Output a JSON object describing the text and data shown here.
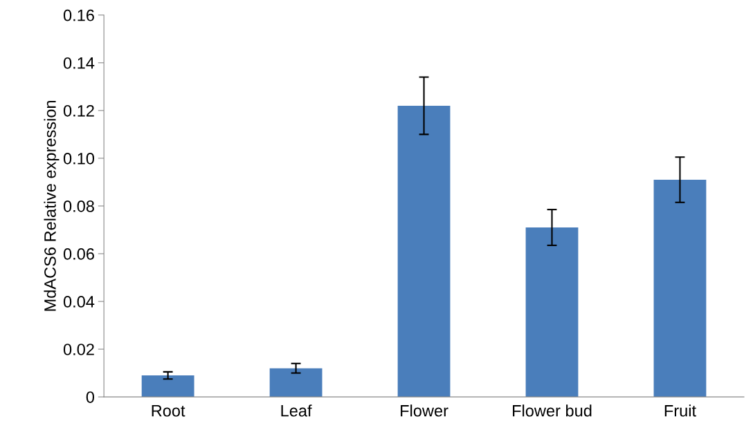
{
  "chart_data": {
    "type": "bar",
    "ylabel": "MdACS6 Relative expression",
    "categories": [
      "Root",
      "Leaf",
      "Flower",
      "Flower bud",
      "Fruit"
    ],
    "values": [
      0.009,
      0.012,
      0.122,
      0.071,
      0.091
    ],
    "errors": [
      0.0015,
      0.002,
      0.012,
      0.0075,
      0.0095
    ],
    "color": "#4a7ebb",
    "ylim": [
      0,
      0.16
    ],
    "yticks": [
      {
        "value": 0,
        "label": "0"
      },
      {
        "value": 0.02,
        "label": "0.02"
      },
      {
        "value": 0.04,
        "label": "0.04"
      },
      {
        "value": 0.06,
        "label": "0.06"
      },
      {
        "value": 0.08,
        "label": "0.08"
      },
      {
        "value": 0.1,
        "label": "0.10"
      },
      {
        "value": 0.12,
        "label": "0.12"
      },
      {
        "value": 0.14,
        "label": "0.14"
      },
      {
        "value": 0.16,
        "label": "0.16"
      }
    ],
    "grid": false,
    "legend": false
  }
}
